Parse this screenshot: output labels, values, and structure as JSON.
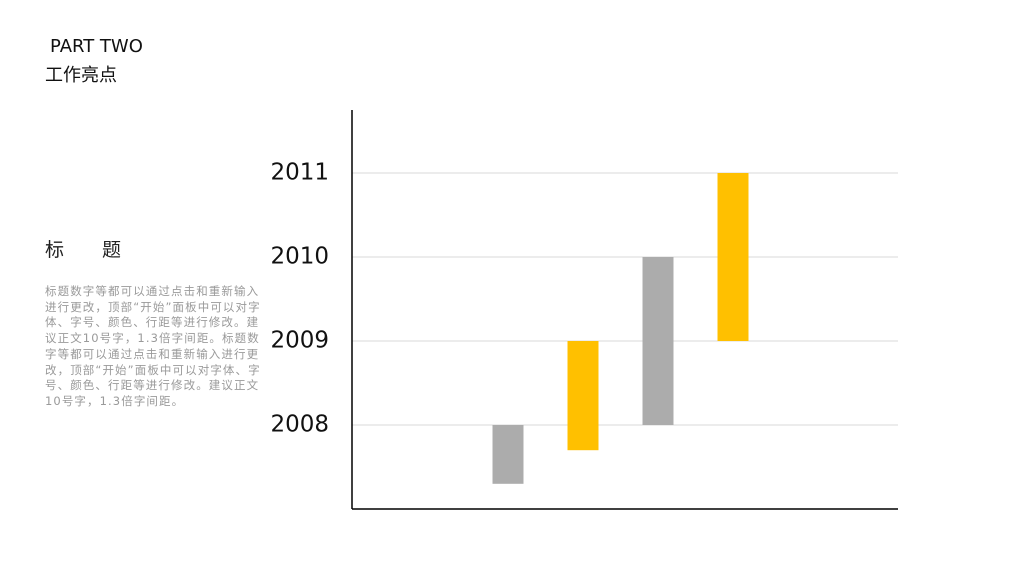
{
  "header": {
    "part": "PART TWO",
    "title": "工作亮点"
  },
  "section": {
    "heading": "标　　题",
    "body": "标题数字等都可以通过点击和重新输入进行更改，顶部“开始”面板中可以对字体、字号、颜色、行距等进行修改。建议正文10号字，1.3倍字间距。标题数字等都可以通过点击和重新输入进行更改，顶部“开始”面板中可以对字体、字号、颜色、行距等进行修改。建议正文10号字，1.3倍字间距。"
  },
  "chart_data": {
    "type": "floating-bar",
    "categories": [
      null,
      null,
      null,
      null
    ],
    "bases": [
      2007.3,
      2007.7,
      2008,
      2009
    ],
    "values": [
      2008,
      2009,
      2010,
      2011
    ],
    "colors": [
      "#acacac",
      "#ffc000",
      "#acacac",
      "#ffc000"
    ],
    "ylim": [
      2007,
      2011.75
    ],
    "yticks": [
      2008,
      2009,
      2010,
      2011
    ],
    "grid": true
  }
}
